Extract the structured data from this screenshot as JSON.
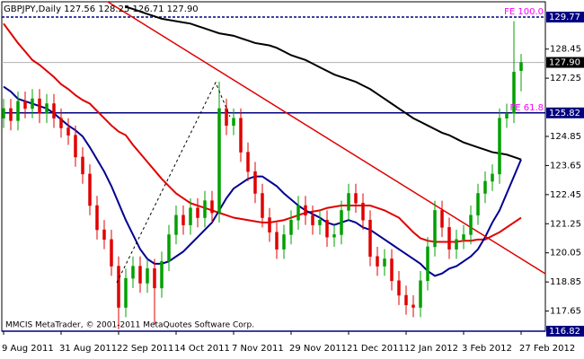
{
  "chart_data": {
    "type": "candlestick",
    "header": "GBPJPY,Daily  127.56 128.25 126.71 127.90",
    "footer": "MMCIS MetaTrader, © 2001-2011 MetaQuotes Software Corp.",
    "categories": [
      "9 Aug 2011",
      null,
      null,
      null,
      null,
      null,
      null,
      null,
      "31 Aug 2011",
      null,
      null,
      null,
      null,
      null,
      null,
      null,
      "22 Sep 2011",
      null,
      null,
      null,
      null,
      null,
      null,
      null,
      "14 Oct 2011",
      null,
      null,
      null,
      null,
      null,
      null,
      null,
      "7 Nov 2011",
      null,
      null,
      null,
      null,
      null,
      null,
      null,
      "29 Nov 2011",
      null,
      null,
      null,
      null,
      null,
      null,
      null,
      "21 Dec 2011",
      null,
      null,
      null,
      null,
      null,
      null,
      null,
      "12 Jan 2012",
      null,
      null,
      null,
      null,
      null,
      null,
      null,
      "3 Feb 2012",
      null,
      null,
      null,
      null,
      null,
      null,
      null,
      "27 Feb 2012"
    ],
    "open": [
      125.6,
      126.0,
      125.5,
      126.3,
      126.0,
      126.4,
      125.8,
      126.2,
      125.6,
      125.2,
      124.9,
      124.0,
      123.3,
      122.0,
      121.0,
      120.6,
      119.5,
      117.8,
      119.0,
      119.5,
      118.8,
      119.4,
      118.6,
      119.7,
      120.8,
      121.6,
      121.2,
      121.9,
      121.5,
      122.2,
      121.7,
      126.0,
      125.3,
      125.6,
      124.2,
      123.4,
      122.5,
      121.5,
      120.9,
      120.2,
      120.8,
      121.4,
      122.0,
      121.6,
      121.2,
      121.4,
      120.7,
      120.8,
      121.8,
      122.5,
      122.1,
      121.4,
      119.9,
      119.5,
      119.8,
      118.9,
      118.3,
      117.9,
      117.8,
      118.9,
      120.3,
      121.8,
      121.1,
      120.2,
      120.6,
      120.8,
      121.6,
      122.5,
      123.0,
      123.3,
      125.6,
      125.8,
      127.56
    ],
    "high": [
      126.4,
      126.4,
      126.7,
      126.7,
      126.8,
      126.8,
      126.6,
      126.6,
      126.0,
      125.6,
      125.3,
      124.4,
      123.7,
      122.4,
      121.4,
      121.0,
      119.9,
      119.4,
      119.9,
      119.9,
      119.8,
      119.8,
      120.1,
      121.2,
      122.0,
      122.0,
      122.3,
      122.3,
      122.6,
      122.6,
      127.1,
      126.4,
      126.0,
      126.0,
      124.6,
      123.8,
      122.9,
      121.9,
      121.3,
      121.2,
      121.8,
      122.4,
      122.4,
      122.0,
      121.8,
      121.8,
      121.2,
      122.2,
      122.9,
      122.9,
      122.5,
      121.8,
      120.3,
      120.2,
      120.2,
      119.3,
      118.7,
      118.3,
      119.3,
      120.7,
      122.2,
      122.2,
      121.5,
      121.0,
      121.2,
      122.0,
      122.9,
      123.4,
      123.7,
      126.0,
      126.2,
      129.6,
      128.25
    ],
    "low": [
      125.2,
      125.1,
      125.1,
      125.6,
      125.6,
      125.4,
      125.4,
      125.2,
      124.8,
      124.5,
      123.6,
      122.9,
      121.6,
      120.6,
      120.2,
      119.1,
      116.9,
      117.4,
      118.6,
      118.4,
      118.4,
      117.1,
      118.2,
      119.3,
      120.4,
      120.8,
      120.8,
      121.1,
      121.1,
      121.3,
      121.3,
      124.9,
      124.9,
      123.8,
      123.0,
      122.1,
      121.1,
      120.5,
      119.8,
      119.8,
      120.4,
      121.0,
      121.2,
      120.8,
      120.8,
      120.3,
      120.3,
      120.4,
      121.4,
      121.7,
      121.0,
      119.5,
      119.1,
      119.1,
      118.5,
      117.9,
      117.5,
      117.4,
      117.4,
      118.5,
      119.9,
      120.7,
      119.8,
      119.8,
      120.2,
      120.4,
      121.2,
      122.1,
      122.6,
      122.9,
      125.2,
      125.4,
      126.71
    ],
    "close": [
      126.0,
      125.5,
      126.3,
      126.0,
      126.4,
      125.8,
      126.2,
      125.6,
      125.2,
      124.9,
      124.0,
      123.3,
      122.0,
      121.0,
      120.6,
      119.5,
      117.8,
      119.0,
      119.5,
      118.8,
      119.4,
      118.6,
      119.7,
      120.8,
      121.6,
      121.2,
      121.9,
      121.5,
      122.2,
      121.7,
      126.0,
      125.3,
      125.6,
      124.2,
      123.4,
      122.5,
      121.5,
      120.9,
      120.2,
      120.8,
      121.4,
      122.0,
      121.6,
      121.2,
      121.4,
      120.7,
      120.8,
      121.8,
      122.5,
      122.1,
      121.4,
      119.9,
      119.5,
      119.8,
      118.9,
      118.3,
      117.9,
      117.8,
      118.9,
      120.3,
      121.8,
      121.1,
      120.2,
      120.6,
      120.8,
      121.6,
      122.5,
      123.0,
      123.3,
      125.6,
      125.8,
      127.5,
      127.9
    ],
    "up_color": "#00a000",
    "down_color": "#e00000",
    "moving_averages": [
      {
        "color": "#000000",
        "values": [
          null,
          null,
          null,
          null,
          null,
          null,
          null,
          null,
          null,
          null,
          null,
          null,
          null,
          null,
          null,
          null,
          null,
          130.2,
          130.1,
          130.0,
          129.9,
          129.8,
          129.7,
          129.65,
          129.6,
          129.55,
          129.5,
          129.4,
          129.3,
          129.2,
          129.1,
          129.05,
          129.0,
          128.9,
          128.8,
          128.7,
          128.65,
          128.6,
          128.5,
          128.35,
          128.2,
          128.1,
          128.0,
          127.85,
          127.7,
          127.55,
          127.4,
          127.3,
          127.2,
          127.1,
          126.95,
          126.8,
          126.6,
          126.4,
          126.2,
          126.0,
          125.8,
          125.6,
          125.45,
          125.3,
          125.15,
          125.0,
          124.9,
          124.75,
          124.6,
          124.5,
          124.4,
          124.3,
          124.2,
          124.15,
          124.1,
          124.0,
          123.9
        ]
      },
      {
        "color": "#e00000",
        "values": [
          129.5,
          129.1,
          128.7,
          128.35,
          128.0,
          127.8,
          127.55,
          127.3,
          127.0,
          126.8,
          126.55,
          126.35,
          126.2,
          125.9,
          125.6,
          125.3,
          125.05,
          124.9,
          124.5,
          124.15,
          123.8,
          123.45,
          123.1,
          122.8,
          122.5,
          122.3,
          122.1,
          122.0,
          121.9,
          121.8,
          121.7,
          121.6,
          121.5,
          121.45,
          121.4,
          121.35,
          121.3,
          121.3,
          121.35,
          121.4,
          121.5,
          121.6,
          121.7,
          121.75,
          121.8,
          121.9,
          121.95,
          122.0,
          122.0,
          122.0,
          122.0,
          122.0,
          121.9,
          121.8,
          121.65,
          121.5,
          121.2,
          120.9,
          120.65,
          120.55,
          120.5,
          120.5,
          120.5,
          120.5,
          120.55,
          120.55,
          120.6,
          120.6,
          120.75,
          120.9,
          121.1,
          121.3,
          121.5
        ]
      },
      {
        "color": "#000090",
        "values": [
          126.9,
          126.7,
          126.4,
          126.3,
          126.2,
          126.1,
          126.0,
          125.8,
          125.55,
          125.3,
          125.1,
          124.85,
          124.4,
          123.9,
          123.4,
          122.8,
          122.1,
          121.4,
          120.8,
          120.2,
          119.8,
          119.6,
          119.6,
          119.7,
          119.9,
          120.1,
          120.4,
          120.7,
          121.0,
          121.3,
          121.8,
          122.3,
          122.7,
          122.9,
          123.1,
          123.2,
          123.2,
          123.0,
          122.8,
          122.5,
          122.25,
          122.0,
          121.8,
          121.65,
          121.5,
          121.3,
          121.2,
          121.3,
          121.4,
          121.3,
          121.1,
          121.0,
          120.8,
          120.6,
          120.4,
          120.2,
          120.0,
          119.8,
          119.6,
          119.3,
          119.1,
          119.2,
          119.4,
          119.5,
          119.7,
          119.9,
          120.2,
          120.7,
          121.3,
          121.8,
          122.5,
          123.2,
          123.9
        ]
      }
    ],
    "trendline": {
      "color": "#e00000",
      "start": 133.07,
      "end": 119.81
    },
    "levels": [
      {
        "label": "FE 100.0",
        "value": 129.77,
        "color": "#000080",
        "label_color": "#ff00ff",
        "dashed": true
      },
      {
        "label": "FE 61.8",
        "value": 125.82,
        "color": "#000080",
        "label_color": "#ff00ff",
        "dashed": false
      }
    ],
    "current_price": {
      "value": 127.9,
      "label": "127.90"
    },
    "ylim": [
      116.82,
      130.4
    ],
    "yticks": [
      128.45,
      127.25,
      124.85,
      123.65,
      122.45,
      121.25,
      120.05,
      118.85,
      117.65
    ]
  }
}
